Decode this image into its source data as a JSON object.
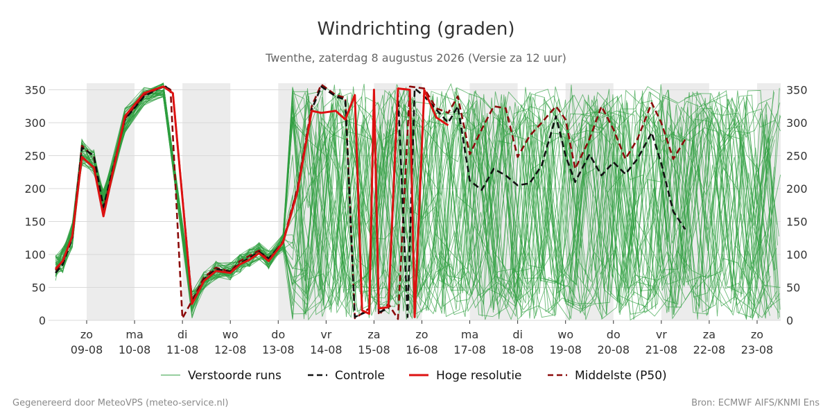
{
  "chart_data": {
    "type": "line",
    "title": "Windrichting (graden)",
    "subtitle": "Twenthe, zaterdag  8 augustus 2026 (Versie za 12 uur)",
    "ylim": [
      0,
      360
    ],
    "yticks": [
      0,
      50,
      100,
      150,
      200,
      250,
      300,
      350
    ],
    "xlim": [
      -0.8,
      14.5
    ],
    "grid": true,
    "legend_position": "bottom",
    "x_ticks": [
      {
        "x": 0,
        "day": "zo",
        "date": "09-08"
      },
      {
        "x": 1,
        "day": "ma",
        "date": "10-08"
      },
      {
        "x": 2,
        "day": "di",
        "date": "11-08"
      },
      {
        "x": 3,
        "day": "wo",
        "date": "12-08"
      },
      {
        "x": 4,
        "day": "do",
        "date": "13-08"
      },
      {
        "x": 5,
        "day": "vr",
        "date": "14-08"
      },
      {
        "x": 6,
        "day": "za",
        "date": "15-08"
      },
      {
        "x": 7,
        "day": "zo",
        "date": "16-08"
      },
      {
        "x": 8,
        "day": "ma",
        "date": "17-08"
      },
      {
        "x": 9,
        "day": "di",
        "date": "18-08"
      },
      {
        "x": 10,
        "day": "wo",
        "date": "19-08"
      },
      {
        "x": 11,
        "day": "do",
        "date": "20-08"
      },
      {
        "x": 12,
        "day": "vr",
        "date": "21-08"
      },
      {
        "x": 13,
        "day": "za",
        "date": "22-08"
      },
      {
        "x": 14,
        "day": "zo",
        "date": "23-08"
      }
    ],
    "shaded_bands": [
      [
        0,
        1
      ],
      [
        2,
        3
      ],
      [
        4,
        5
      ],
      [
        6,
        7
      ],
      [
        8,
        9
      ],
      [
        10,
        11
      ],
      [
        12,
        13
      ],
      [
        14,
        14.5
      ]
    ],
    "series": [
      {
        "name": "Hoge resolutie",
        "color": "#dd1111",
        "style": "solid",
        "points": [
          [
            -0.65,
            78
          ],
          [
            -0.5,
            90
          ],
          [
            -0.3,
            128
          ],
          [
            -0.1,
            248
          ],
          [
            0.15,
            232
          ],
          [
            0.35,
            158
          ],
          [
            0.8,
            310
          ],
          [
            1.2,
            345
          ],
          [
            1.6,
            355
          ],
          [
            1.8,
            345
          ],
          [
            2.2,
            25
          ],
          [
            2.45,
            60
          ],
          [
            2.7,
            75
          ],
          [
            3.0,
            72
          ],
          [
            3.2,
            85
          ],
          [
            3.4,
            92
          ],
          [
            3.6,
            102
          ],
          [
            3.8,
            90
          ],
          [
            4.1,
            118
          ],
          [
            4.4,
            195
          ],
          [
            4.7,
            318
          ],
          [
            4.9,
            315
          ],
          [
            5.2,
            318
          ],
          [
            5.4,
            305
          ],
          [
            5.6,
            342
          ],
          [
            5.75,
            15
          ],
          [
            5.9,
            10
          ],
          [
            6.0,
            350
          ],
          [
            6.1,
            18
          ],
          [
            6.3,
            20
          ],
          [
            6.5,
            352
          ],
          [
            6.75,
            350
          ],
          [
            6.85,
            5
          ],
          [
            7.05,
            350
          ],
          [
            7.3,
            308
          ],
          [
            7.55,
            296
          ]
        ]
      },
      {
        "name": "Controle",
        "color": "#111111",
        "style": "dashed",
        "points": [
          [
            -0.65,
            72
          ],
          [
            -0.5,
            85
          ],
          [
            -0.3,
            125
          ],
          [
            -0.1,
            262
          ],
          [
            0.15,
            250
          ],
          [
            0.35,
            172
          ],
          [
            0.8,
            305
          ],
          [
            1.2,
            340
          ],
          [
            1.5,
            352
          ],
          [
            1.65,
            355
          ],
          [
            1.8,
            345
          ],
          [
            2.2,
            28
          ],
          [
            2.45,
            62
          ],
          [
            2.7,
            78
          ],
          [
            3.0,
            74
          ],
          [
            3.2,
            86
          ],
          [
            3.4,
            95
          ],
          [
            3.6,
            104
          ],
          [
            3.8,
            94
          ],
          [
            4.1,
            118
          ],
          [
            4.4,
            198
          ],
          [
            4.7,
            320
          ],
          [
            4.9,
            355
          ],
          [
            5.2,
            340
          ],
          [
            5.4,
            335
          ],
          [
            5.6,
            5
          ],
          [
            5.9,
            15
          ],
          [
            6.0,
            345
          ],
          [
            6.1,
            12
          ],
          [
            6.3,
            18
          ],
          [
            6.5,
            345
          ],
          [
            6.7,
            5
          ],
          [
            6.85,
            352
          ],
          [
            7.05,
            340
          ],
          [
            7.3,
            320
          ],
          [
            7.55,
            300
          ],
          [
            7.75,
            325
          ],
          [
            8.0,
            212
          ],
          [
            8.25,
            198
          ],
          [
            8.5,
            230
          ],
          [
            8.75,
            220
          ],
          [
            9.0,
            205
          ],
          [
            9.25,
            208
          ],
          [
            9.5,
            235
          ],
          [
            9.8,
            310
          ],
          [
            10.0,
            250
          ],
          [
            10.2,
            210
          ],
          [
            10.5,
            252
          ],
          [
            10.75,
            220
          ],
          [
            11.0,
            240
          ],
          [
            11.25,
            222
          ],
          [
            11.5,
            245
          ],
          [
            11.8,
            285
          ],
          [
            12.0,
            238
          ],
          [
            12.25,
            165
          ],
          [
            12.5,
            138
          ]
        ]
      },
      {
        "name": "Middelste (P50)",
        "color": "#8b0a0a",
        "style": "dashed",
        "points": [
          [
            -0.65,
            76
          ],
          [
            -0.5,
            88
          ],
          [
            -0.3,
            128
          ],
          [
            -0.1,
            265
          ],
          [
            0.15,
            248
          ],
          [
            0.35,
            168
          ],
          [
            0.8,
            306
          ],
          [
            1.2,
            342
          ],
          [
            1.5,
            352
          ],
          [
            1.65,
            355
          ],
          [
            1.75,
            350
          ],
          [
            2.0,
            3
          ],
          [
            2.2,
            30
          ],
          [
            2.45,
            65
          ],
          [
            2.7,
            80
          ],
          [
            3.0,
            74
          ],
          [
            3.2,
            90
          ],
          [
            3.4,
            98
          ],
          [
            3.6,
            106
          ],
          [
            3.8,
            92
          ],
          [
            4.1,
            120
          ],
          [
            4.4,
            200
          ],
          [
            4.7,
            325
          ],
          [
            4.9,
            358
          ],
          [
            5.2,
            342
          ],
          [
            5.4,
            338
          ],
          [
            5.6,
            3
          ],
          [
            5.9,
            18
          ],
          [
            6.0,
            340
          ],
          [
            6.1,
            8
          ],
          [
            6.3,
            25
          ],
          [
            6.5,
            2
          ],
          [
            6.75,
            355
          ],
          [
            7.05,
            352
          ],
          [
            7.3,
            322
          ],
          [
            7.55,
            315
          ],
          [
            7.75,
            340
          ],
          [
            8.0,
            252
          ],
          [
            8.25,
            290
          ],
          [
            8.5,
            325
          ],
          [
            8.75,
            322
          ],
          [
            9.0,
            248
          ],
          [
            9.25,
            280
          ],
          [
            9.5,
            300
          ],
          [
            9.8,
            325
          ],
          [
            10.0,
            305
          ],
          [
            10.2,
            230
          ],
          [
            10.5,
            275
          ],
          [
            10.75,
            325
          ],
          [
            11.0,
            290
          ],
          [
            11.25,
            245
          ],
          [
            11.5,
            275
          ],
          [
            11.8,
            330
          ],
          [
            12.0,
            300
          ],
          [
            12.25,
            245
          ],
          [
            12.5,
            275
          ]
        ]
      }
    ]
  },
  "legend": [
    {
      "label": "Verstoorde runs",
      "color": "#2e9e3e",
      "style": "thin"
    },
    {
      "label": "Controle",
      "color": "#111111",
      "style": "dashed"
    },
    {
      "label": "Hoge resolutie",
      "color": "#dd1111",
      "style": "solid"
    },
    {
      "label": "Middelste (P50)",
      "color": "#8b0a0a",
      "style": "dashed"
    }
  ],
  "footer": {
    "left": "Gegenereerd door MeteoVPS (meteo-service.nl)",
    "right": "Bron: ECMWF AIFS/KNMI Ens"
  },
  "colors": {
    "ensemble": "#2e9e3e",
    "band": "#ececec",
    "grid": "#d9d9d9"
  }
}
